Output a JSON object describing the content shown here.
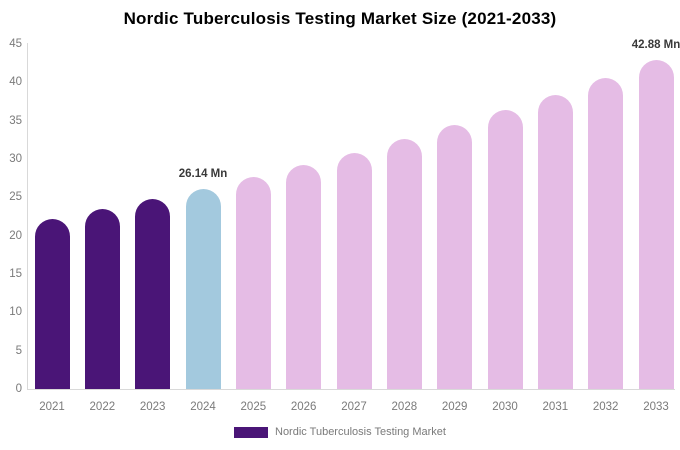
{
  "chart_data": {
    "type": "bar",
    "title": "Nordic Tuberculosis Testing Market Size (2021-2033)",
    "categories": [
      "2021",
      "2022",
      "2023",
      "2024",
      "2025",
      "2026",
      "2027",
      "2028",
      "2029",
      "2030",
      "2031",
      "2032",
      "2033"
    ],
    "values": [
      22.16,
      23.42,
      24.74,
      26.14,
      27.62,
      29.18,
      30.83,
      32.57,
      34.41,
      36.36,
      38.41,
      40.59,
      42.88
    ],
    "unit": "Mn",
    "data_labels": [
      "",
      "",
      "",
      "26.14 Mn",
      "",
      "",
      "",
      "",
      "",
      "",
      "",
      "",
      "42.88 Mn"
    ],
    "bar_colors": [
      "#4a1577",
      "#4a1577",
      "#4a1577",
      "#a3c9de",
      "#e5bce5",
      "#e5bce5",
      "#e5bce5",
      "#e5bce5",
      "#e5bce5",
      "#e5bce5",
      "#e5bce5",
      "#e5bce5",
      "#e5bce5"
    ],
    "xlabel": "",
    "ylabel": "",
    "ylim": [
      0,
      45
    ],
    "ytick_step": 5,
    "yticks": [
      "0",
      "5",
      "10",
      "15",
      "20",
      "25",
      "30",
      "35",
      "40",
      "45"
    ],
    "grid": false,
    "legend": [
      "Nordic Tuberculosis Testing Market"
    ],
    "legend_position": "bottom",
    "colors": {
      "historical_bar": "#4a1577",
      "current_year_bar": "#a3c9de",
      "forecast_bar": "#e5bce5",
      "legend_swatch": "#4a1577",
      "axis_line": "#d9d9d9",
      "tick_text": "#7a7a7a",
      "data_label_text": "#3a3a3a",
      "title_text": "#000000",
      "background": "#ffffff"
    }
  }
}
